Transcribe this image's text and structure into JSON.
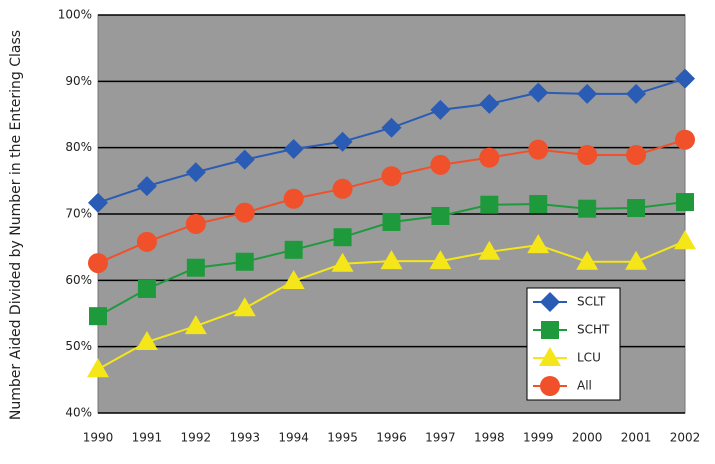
{
  "chart_data": {
    "type": "line",
    "y_label": "Number Aided Divided by Number in the Entering Class",
    "categories": [
      "1990",
      "1991",
      "1992",
      "1993",
      "1994",
      "1995",
      "1996",
      "1997",
      "1998",
      "1999",
      "2000",
      "2001",
      "2002"
    ],
    "series": [
      {
        "name": "SCLT",
        "color": "#2a5bb5",
        "marker": "diamond",
        "values": [
          71.7,
          74.2,
          76.3,
          78.2,
          79.8,
          80.9,
          83.0,
          85.7,
          86.6,
          88.3,
          88.1,
          88.1,
          90.4
        ]
      },
      {
        "name": "SCHT",
        "color": "#1e9a3c",
        "marker": "square",
        "values": [
          54.6,
          58.7,
          61.9,
          62.8,
          64.6,
          66.5,
          68.8,
          69.7,
          71.4,
          71.5,
          70.8,
          70.9,
          71.8
        ]
      },
      {
        "name": "LCU",
        "color": "#f5e61a",
        "marker": "triangle",
        "values": [
          46.6,
          50.7,
          53.1,
          55.8,
          59.9,
          62.5,
          62.9,
          62.9,
          64.3,
          65.3,
          62.8,
          62.8,
          65.9
        ]
      },
      {
        "name": "All",
        "color": "#f0502a",
        "marker": "circle",
        "values": [
          62.6,
          65.8,
          68.5,
          70.2,
          72.3,
          73.8,
          75.7,
          77.4,
          78.5,
          79.7,
          78.9,
          78.9,
          81.2
        ]
      }
    ],
    "ylim": [
      40,
      100
    ],
    "yticks": [
      {
        "value": 40,
        "label": "40%"
      },
      {
        "value": 50,
        "label": "50%"
      },
      {
        "value": 60,
        "label": "60%"
      },
      {
        "value": 70,
        "label": "70%"
      },
      {
        "value": 80,
        "label": "80%"
      },
      {
        "value": 90,
        "label": "90%"
      },
      {
        "value": 100,
        "label": "100%"
      }
    ],
    "grid": true,
    "legend": "lower right"
  }
}
